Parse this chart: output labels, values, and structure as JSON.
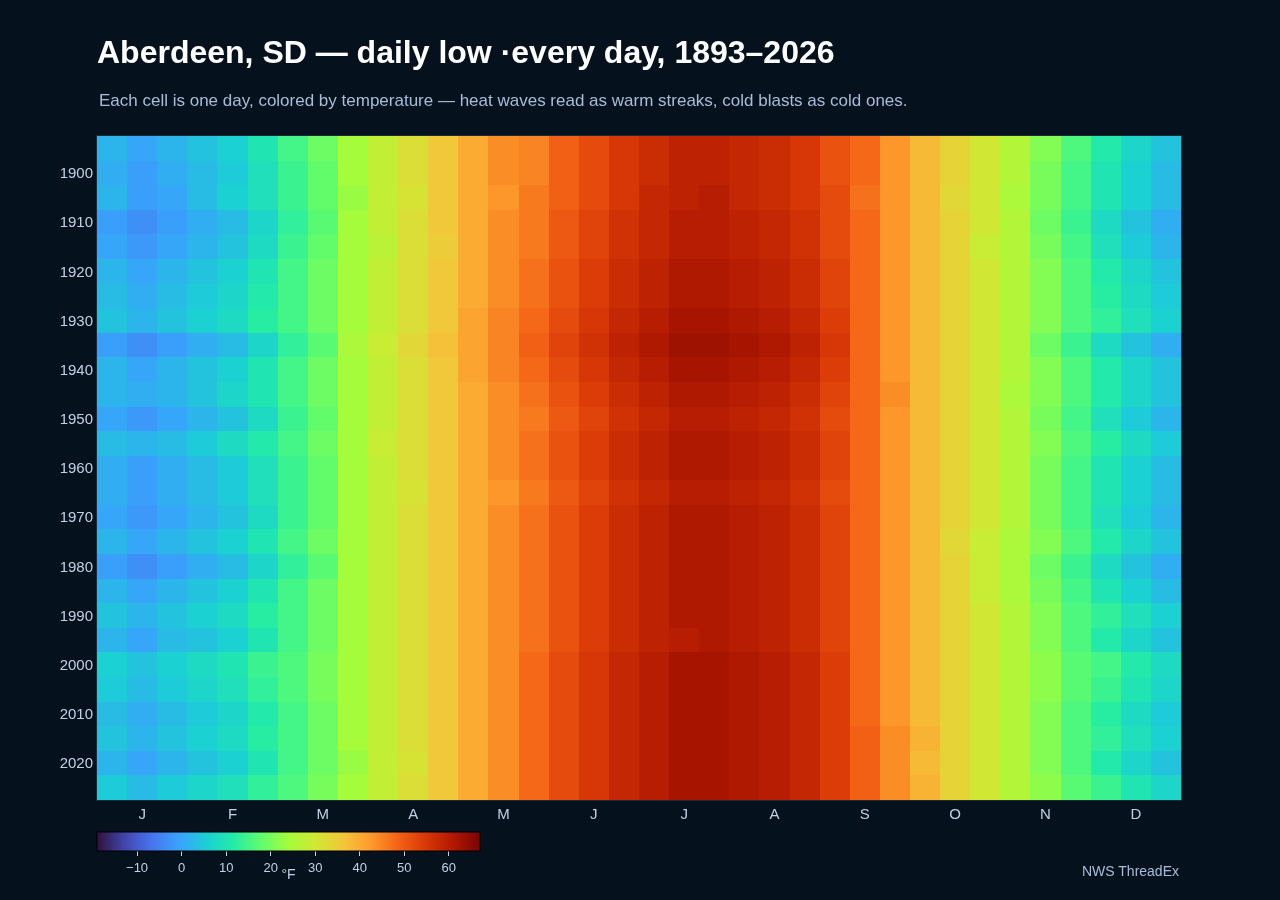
{
  "chart_data": {
    "type": "heatmap",
    "title": "Aberdeen, SD — daily low ·every day, 1893–2026",
    "subtitle": "Each cell is one day, colored by temperature — heat waves read as warm streaks, cold blasts as cold ones.",
    "categories": [
      null,
      "J",
      null,
      null,
      "F",
      null,
      null,
      "M",
      null,
      null,
      "A",
      null,
      null,
      "M",
      null,
      null,
      "J",
      null,
      null,
      "J",
      null,
      null,
      "A",
      null,
      null,
      "S",
      null,
      null,
      "O",
      null,
      null,
      "N",
      null,
      null,
      "D",
      null
    ],
    "y_categories": [
      null,
      "1900",
      null,
      "1910",
      null,
      "1920",
      null,
      "1930",
      null,
      "1940",
      null,
      "1950",
      null,
      "1960",
      null,
      "1970",
      null,
      "1980",
      null,
      "1990",
      null,
      "2000",
      null,
      "2010",
      null,
      "2020",
      null
    ],
    "cells": [
      [
        2,
        0,
        2,
        4,
        6,
        10,
        15,
        19,
        24,
        28,
        32,
        36,
        40,
        44,
        45,
        49,
        52,
        55,
        57,
        59,
        59,
        58,
        57,
        55,
        51,
        48,
        43,
        38,
        34,
        30,
        26,
        21,
        16,
        11,
        7,
        4
      ],
      [
        1,
        -1,
        1,
        3,
        5,
        9,
        14,
        18,
        24,
        28,
        32,
        36,
        40,
        44,
        45,
        49,
        52,
        55,
        57,
        59,
        59,
        58,
        57,
        55,
        51,
        48,
        43,
        38,
        34,
        30,
        26,
        20,
        15,
        10,
        6,
        3
      ],
      [
        2,
        -1,
        0,
        3,
        6,
        9,
        14,
        18,
        23,
        28,
        31,
        36,
        40,
        43,
        46,
        49,
        52,
        55,
        58,
        59,
        60,
        58,
        57,
        55,
        52,
        47,
        43,
        38,
        33,
        30,
        25,
        20,
        15,
        10,
        6,
        3
      ],
      [
        -1,
        -3,
        -1,
        1,
        3,
        7,
        13,
        17,
        24,
        28,
        32,
        36,
        40,
        44,
        46,
        50,
        53,
        56,
        58,
        60,
        60,
        59,
        58,
        56,
        52,
        48,
        43,
        38,
        34,
        30,
        26,
        19,
        14,
        8,
        4,
        1
      ],
      [
        0,
        -2,
        0,
        2,
        4,
        8,
        14,
        18,
        24,
        27,
        32,
        35,
        40,
        44,
        46,
        50,
        53,
        56,
        58,
        60,
        60,
        59,
        58,
        56,
        52,
        48,
        43,
        38,
        34,
        29,
        26,
        20,
        15,
        9,
        5,
        2
      ],
      [
        2,
        0,
        2,
        4,
        6,
        10,
        15,
        19,
        24,
        28,
        32,
        36,
        40,
        44,
        47,
        51,
        54,
        57,
        59,
        61,
        61,
        60,
        59,
        57,
        53,
        48,
        43,
        38,
        34,
        30,
        26,
        21,
        16,
        11,
        7,
        4
      ],
      [
        3,
        1,
        3,
        5,
        7,
        11,
        15,
        19,
        24,
        28,
        32,
        36,
        40,
        44,
        47,
        51,
        54,
        57,
        59,
        61,
        61,
        60,
        59,
        57,
        53,
        48,
        43,
        38,
        34,
        30,
        26,
        21,
        16,
        12,
        8,
        5
      ],
      [
        4,
        2,
        4,
        6,
        8,
        12,
        15,
        19,
        24,
        28,
        32,
        36,
        41,
        45,
        48,
        52,
        55,
        58,
        60,
        62,
        62,
        61,
        60,
        58,
        54,
        48,
        43,
        38,
        34,
        30,
        26,
        21,
        16,
        13,
        9,
        6
      ],
      [
        -1,
        -3,
        -1,
        1,
        3,
        7,
        13,
        17,
        25,
        29,
        33,
        37,
        41,
        45,
        49,
        53,
        56,
        59,
        61,
        63,
        63,
        62,
        61,
        59,
        55,
        48,
        43,
        38,
        34,
        30,
        26,
        19,
        14,
        8,
        4,
        1
      ],
      [
        2,
        0,
        2,
        4,
        6,
        10,
        15,
        19,
        24,
        28,
        32,
        36,
        41,
        45,
        48,
        52,
        55,
        58,
        60,
        62,
        62,
        61,
        60,
        58,
        54,
        48,
        43,
        38,
        34,
        30,
        26,
        21,
        16,
        11,
        7,
        4
      ],
      [
        2,
        1,
        2,
        4,
        7,
        10,
        15,
        19,
        24,
        28,
        32,
        36,
        40,
        44,
        47,
        51,
        54,
        57,
        59,
        61,
        61,
        60,
        59,
        57,
        53,
        48,
        44,
        38,
        34,
        30,
        25,
        21,
        16,
        11,
        7,
        4
      ],
      [
        0,
        -2,
        0,
        2,
        4,
        8,
        14,
        18,
        24,
        28,
        32,
        36,
        40,
        44,
        46,
        50,
        53,
        56,
        58,
        60,
        60,
        59,
        58,
        56,
        52,
        48,
        43,
        38,
        34,
        30,
        26,
        20,
        15,
        9,
        5,
        2
      ],
      [
        3,
        2,
        3,
        5,
        8,
        11,
        15,
        19,
        24,
        29,
        32,
        36,
        40,
        44,
        47,
        51,
        54,
        57,
        59,
        61,
        61,
        60,
        59,
        57,
        53,
        48,
        43,
        38,
        34,
        30,
        26,
        21,
        16,
        12,
        8,
        5
      ],
      [
        1,
        -1,
        1,
        3,
        5,
        9,
        14,
        18,
        24,
        28,
        32,
        36,
        40,
        44,
        47,
        51,
        54,
        57,
        59,
        61,
        61,
        60,
        59,
        57,
        53,
        48,
        43,
        38,
        34,
        30,
        26,
        20,
        15,
        10,
        6,
        3
      ],
      [
        1,
        -1,
        1,
        3,
        5,
        9,
        14,
        18,
        24,
        28,
        31,
        36,
        40,
        43,
        46,
        50,
        53,
        56,
        58,
        60,
        60,
        59,
        58,
        56,
        52,
        48,
        43,
        38,
        34,
        30,
        26,
        20,
        15,
        10,
        6,
        3
      ],
      [
        0,
        -2,
        0,
        2,
        4,
        8,
        14,
        18,
        24,
        28,
        32,
        36,
        40,
        44,
        47,
        51,
        54,
        57,
        59,
        61,
        61,
        60,
        59,
        57,
        53,
        48,
        43,
        38,
        34,
        30,
        26,
        20,
        15,
        9,
        5,
        2
      ],
      [
        2,
        0,
        2,
        4,
        6,
        10,
        15,
        19,
        24,
        28,
        32,
        36,
        40,
        44,
        47,
        51,
        54,
        57,
        59,
        61,
        61,
        60,
        59,
        57,
        53,
        48,
        43,
        38,
        33,
        29,
        25,
        21,
        16,
        11,
        7,
        4
      ],
      [
        -1,
        -3,
        -1,
        1,
        3,
        7,
        13,
        17,
        24,
        28,
        32,
        36,
        40,
        44,
        47,
        51,
        54,
        57,
        59,
        61,
        61,
        60,
        59,
        57,
        53,
        48,
        43,
        38,
        34,
        29,
        25,
        19,
        14,
        8,
        4,
        1
      ],
      [
        2,
        0,
        2,
        4,
        6,
        10,
        15,
        19,
        24,
        28,
        32,
        36,
        40,
        44,
        47,
        51,
        54,
        57,
        59,
        61,
        61,
        60,
        59,
        57,
        53,
        48,
        43,
        38,
        34,
        29,
        25,
        20,
        15,
        10,
        6,
        3
      ],
      [
        4,
        2,
        4,
        6,
        8,
        12,
        15,
        19,
        24,
        28,
        32,
        36,
        40,
        44,
        47,
        51,
        54,
        57,
        59,
        61,
        61,
        60,
        59,
        57,
        53,
        48,
        43,
        38,
        34,
        30,
        26,
        21,
        16,
        13,
        9,
        6
      ],
      [
        2,
        0,
        3,
        4,
        6,
        10,
        15,
        19,
        24,
        28,
        32,
        36,
        40,
        44,
        47,
        51,
        54,
        57,
        59,
        60,
        61,
        60,
        59,
        57,
        53,
        48,
        43,
        38,
        34,
        30,
        26,
        21,
        16,
        11,
        7,
        4
      ],
      [
        6,
        4,
        6,
        8,
        10,
        14,
        16,
        20,
        24,
        28,
        32,
        36,
        40,
        44,
        48,
        52,
        55,
        58,
        60,
        62,
        62,
        61,
        60,
        58,
        54,
        48,
        43,
        38,
        34,
        30,
        26,
        22,
        17,
        15,
        11,
        8
      ],
      [
        5,
        3,
        5,
        7,
        9,
        13,
        16,
        20,
        24,
        28,
        32,
        36,
        40,
        44,
        48,
        52,
        55,
        58,
        60,
        62,
        62,
        61,
        60,
        58,
        54,
        48,
        43,
        38,
        34,
        30,
        26,
        22,
        17,
        14,
        10,
        7
      ],
      [
        3,
        1,
        3,
        5,
        7,
        11,
        15,
        19,
        24,
        28,
        32,
        36,
        40,
        44,
        48,
        52,
        55,
        58,
        60,
        62,
        62,
        61,
        60,
        58,
        54,
        48,
        43,
        38,
        34,
        30,
        26,
        21,
        16,
        12,
        8,
        5
      ],
      [
        4,
        2,
        4,
        6,
        8,
        12,
        15,
        19,
        24,
        28,
        32,
        36,
        40,
        44,
        48,
        52,
        55,
        58,
        60,
        62,
        62,
        61,
        60,
        58,
        54,
        49,
        44,
        39,
        34,
        30,
        26,
        21,
        16,
        13,
        9,
        6
      ],
      [
        2,
        0,
        2,
        4,
        6,
        10,
        15,
        19,
        23,
        28,
        31,
        36,
        40,
        44,
        48,
        52,
        55,
        58,
        60,
        62,
        62,
        61,
        60,
        58,
        54,
        49,
        44,
        38,
        34,
        30,
        26,
        21,
        16,
        11,
        7,
        4
      ],
      [
        5,
        3,
        5,
        7,
        9,
        13,
        16,
        20,
        24,
        28,
        32,
        36,
        40,
        44,
        48,
        52,
        55,
        58,
        60,
        62,
        62,
        61,
        60,
        58,
        54,
        49,
        44,
        39,
        34,
        30,
        26,
        22,
        17,
        14,
        10,
        7
      ]
    ],
    "clim": [
      -19,
      67
    ],
    "cticks": [
      -10,
      0,
      10,
      20,
      30,
      40,
      50,
      60
    ],
    "clabel": "°F",
    "annotations": [
      "NWS ThreadEx"
    ]
  }
}
